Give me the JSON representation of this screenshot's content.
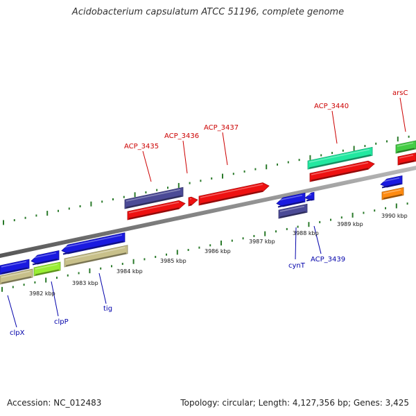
{
  "title": "Acidobacterium capsulatum ATCC 51196, complete genome",
  "accession": "Accession: NC_012483",
  "summary": "Topology: circular; Length: 4,127,356 bp; Genes: 3,425",
  "kbp_labels": [
    {
      "text": "3982 kbp"
    },
    {
      "text": "3983 kbp"
    },
    {
      "text": "3984 kbp"
    },
    {
      "text": "3985 kbp"
    },
    {
      "text": "3986 kbp"
    },
    {
      "text": "3987 kbp"
    },
    {
      "text": "3988 kbp"
    },
    {
      "text": "3989 kbp"
    },
    {
      "text": "3990 kbp"
    }
  ],
  "gene_labels": [
    {
      "text": "ACP_3435",
      "color": "#cc0000"
    },
    {
      "text": "ACP_3436",
      "color": "#cc0000"
    },
    {
      "text": "ACP_3437",
      "color": "#cc0000"
    },
    {
      "text": "ACP_3440",
      "color": "#cc0000"
    },
    {
      "text": "arsC",
      "color": "#cc0000"
    },
    {
      "text": "cynT",
      "color": "#0000aa"
    },
    {
      "text": "ACP_3439",
      "color": "#0000aa"
    },
    {
      "text": "clpX",
      "color": "#0000aa"
    },
    {
      "text": "clpP",
      "color": "#0000aa"
    },
    {
      "text": "tig",
      "color": "#0000aa"
    }
  ],
  "colors": {
    "backbone": "#888888",
    "ticks": "#2a7a2a",
    "cds_red": "#ee1111",
    "cds_blue": "#1a1ae0",
    "slate": "#4b4a96",
    "khaki": "#c8c08a",
    "teal": "#22e8a0",
    "green": "#44cc44",
    "lime": "#99ee33",
    "orange": "#ff8a10"
  }
}
